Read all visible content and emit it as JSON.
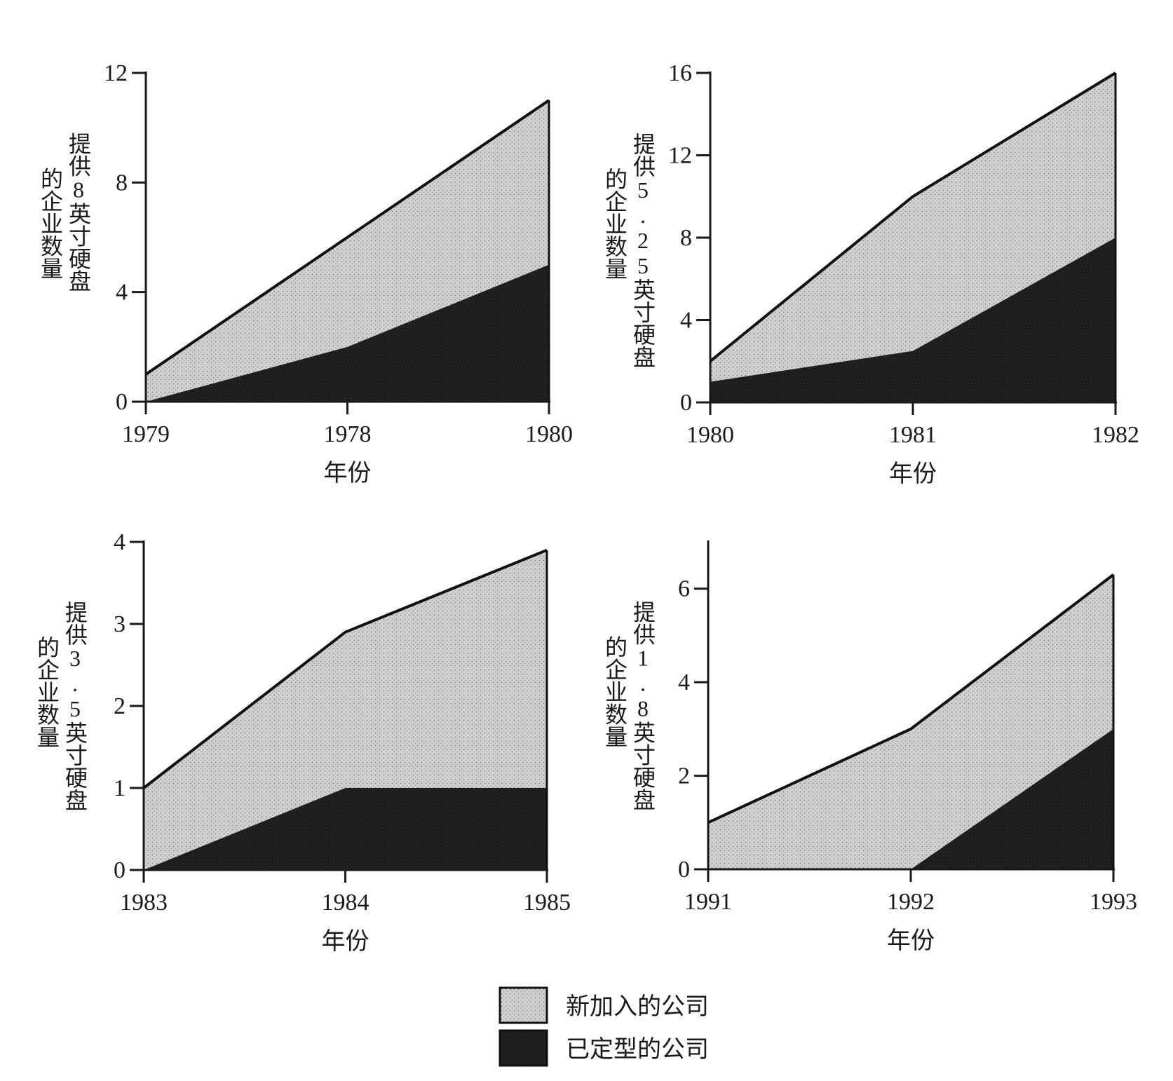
{
  "colors": {
    "new_entrants_fill": "#cfcfcf",
    "established_fill": "#1f1f1f",
    "line": "#111111",
    "axis": "#1a1a1a"
  },
  "legend": {
    "placement": "bottom-center",
    "items": [
      {
        "label": "新加入的公司",
        "swatch": "light-stippled"
      },
      {
        "label": "已定型的公司",
        "swatch": "dark-stippled"
      }
    ]
  },
  "chart_data": [
    {
      "type": "area",
      "stacked": true,
      "ylabel": "提供8英寸硬盘的企业数量",
      "ylabel_lines": [
        "提供8英寸硬盘",
        "的企业数量"
      ],
      "xlabel": "年份",
      "categories": [
        "1979",
        "1978",
        "1980"
      ],
      "ylim": [
        0,
        12
      ],
      "yticks": [
        0,
        4,
        8,
        12
      ],
      "series": [
        {
          "name": "已定型的公司",
          "values": [
            0,
            2,
            5
          ]
        },
        {
          "name": "新加入的公司",
          "values": [
            1,
            4,
            6
          ]
        }
      ],
      "totals": [
        1,
        6,
        11
      ]
    },
    {
      "type": "area",
      "stacked": true,
      "ylabel": "提供5.25英寸硬盘的企业数量",
      "ylabel_lines": [
        "提供5.25英寸硬盘",
        "的企业数量"
      ],
      "xlabel": "年份",
      "categories": [
        "1980",
        "1981",
        "1982"
      ],
      "ylim": [
        0,
        16
      ],
      "yticks": [
        0,
        4,
        8,
        12,
        16
      ],
      "series": [
        {
          "name": "已定型的公司",
          "values": [
            1,
            2.5,
            8
          ]
        },
        {
          "name": "新加入的公司",
          "values": [
            1,
            7.5,
            8
          ]
        }
      ],
      "totals": [
        2,
        10,
        16
      ]
    },
    {
      "type": "area",
      "stacked": true,
      "ylabel": "提供3.5英寸硬盘的企业数量",
      "ylabel_lines": [
        "提供3.5英寸硬盘",
        "的企业数量"
      ],
      "xlabel": "年份",
      "categories": [
        "1983",
        "1984",
        "1985"
      ],
      "ylim": [
        0,
        4
      ],
      "yticks": [
        0,
        1,
        2,
        3,
        4
      ],
      "series": [
        {
          "name": "已定型的公司",
          "values": [
            0,
            1,
            1
          ]
        },
        {
          "name": "新加入的公司",
          "values": [
            1,
            1.9,
            2.9
          ]
        }
      ],
      "totals": [
        1,
        2.9,
        3.9
      ]
    },
    {
      "type": "area",
      "stacked": true,
      "ylabel": "提供1.8英寸硬盘的企业数量",
      "ylabel_lines": [
        "提供1.8英寸硬盘",
        "的企业数量"
      ],
      "xlabel": "年份",
      "categories": [
        "1991",
        "1992",
        "1993"
      ],
      "ylim": [
        0,
        7
      ],
      "yticks": [
        0,
        2,
        4,
        6
      ],
      "series": [
        {
          "name": "已定型的公司",
          "values": [
            0,
            0,
            3
          ]
        },
        {
          "name": "新加入的公司",
          "values": [
            1,
            3,
            3.3
          ]
        }
      ],
      "totals": [
        1,
        3,
        6.3
      ]
    }
  ]
}
